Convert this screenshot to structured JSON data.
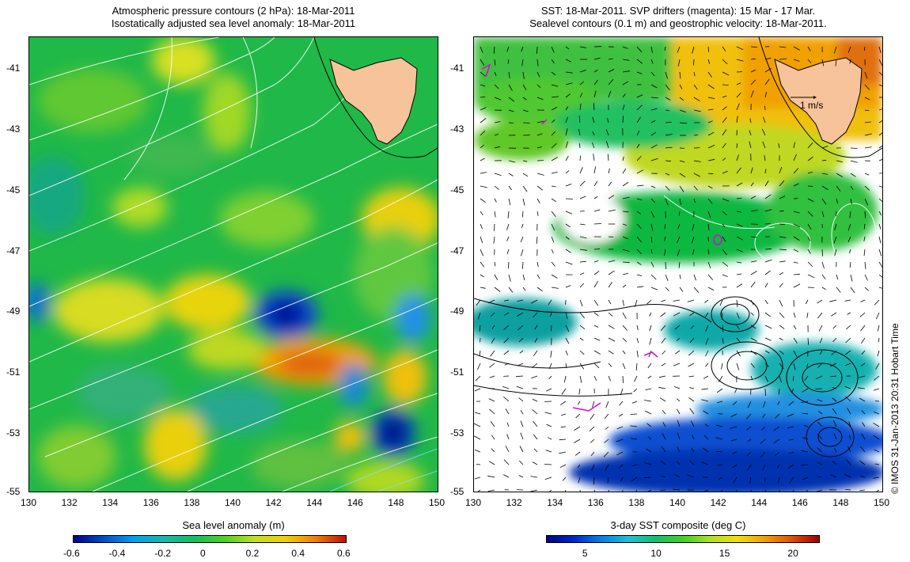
{
  "left_panel": {
    "title_line1": "Atmospheric pressure contours (2 hPa): 18-Mar-2011",
    "title_line2": "Isostatically adjusted sea level anomaly: 18-Mar-2011",
    "colorbar_label": "Sea level anomaly (m)",
    "colorbar_ticks": [
      "-0.6",
      "-0.4",
      "-0.2",
      "0",
      "0.2",
      "0.4",
      "0.6"
    ],
    "colorbar_colors": [
      "#000080",
      "#0050c8",
      "#00a0f0",
      "#18b8a8",
      "#10c060",
      "#50d020",
      "#c0e020",
      "#f0d000",
      "#f08000",
      "#c01000"
    ]
  },
  "right_panel": {
    "title_line1": "SST: 18-Mar-2011. SVP drifters (magenta): 15 Mar - 17 Mar.",
    "title_line2": "Sealevel contours (0.1 m) and geostrophic velocity: 18-Mar-2011.",
    "colorbar_label": "3-day SST composite (deg C)",
    "colorbar_ticks": [
      "5",
      "10",
      "15",
      "20"
    ],
    "velocity_scale_label": "1 m/s",
    "colorbar_colors": [
      "#00007f",
      "#0028c8",
      "#0080e8",
      "#20c0d0",
      "#10c070",
      "#40d020",
      "#b0e020",
      "#f0e000",
      "#f0a000",
      "#e05000",
      "#a00000"
    ]
  },
  "axes": {
    "lat_ticks": [
      "-41",
      "-43",
      "-45",
      "-47",
      "-49",
      "-51",
      "-53",
      "-55"
    ],
    "lon_ticks": [
      "130",
      "132",
      "134",
      "136",
      "138",
      "140",
      "142",
      "144",
      "146",
      "148",
      "150"
    ]
  },
  "credit": "© IMOS 31-Jan-2013 20:31 Hobart Time",
  "colors": {
    "land": "#f7c39a",
    "ocean_green": "#20c040"
  }
}
